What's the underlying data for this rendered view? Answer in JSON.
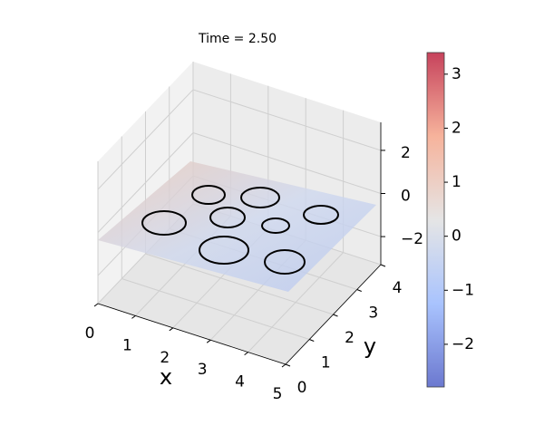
{
  "chart_data": {
    "type": "surface3d",
    "title": "Time = 2.50",
    "xlabel": "x",
    "ylabel": "y",
    "xlim": [
      0,
      5
    ],
    "ylim": [
      0,
      4
    ],
    "zlim": [
      -3.3,
      3.3
    ],
    "xticks": [
      0,
      1,
      2,
      3,
      4,
      5
    ],
    "yticks": [
      0,
      1,
      2,
      3,
      4
    ],
    "zticks": [
      {
        "value": -2,
        "label": "−2"
      },
      0,
      2
    ],
    "colorbar": {
      "lim": [
        -2.79,
        3.4
      ],
      "ticks": [
        {
          "value": -2,
          "label": "−2"
        },
        {
          "value": -1,
          "label": "−1"
        },
        0,
        1,
        2,
        3
      ]
    },
    "grid": true
  }
}
